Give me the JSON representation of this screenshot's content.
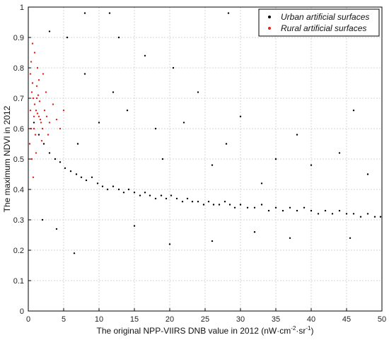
{
  "chart_data": {
    "type": "scatter",
    "xlabel": "The original NPP-VIIRS DNB value in 2012 (nW·cm",
    "xlabel_sup1": "-2",
    "xlabel_mid": "·sr",
    "xlabel_sup2": "-1",
    "xlabel_end": ")",
    "ylabel": "The maximum NDVI in 2012",
    "xlim": [
      0,
      50
    ],
    "ylim": [
      0,
      1
    ],
    "xticks": [
      "0",
      "5",
      "10",
      "15",
      "20",
      "25",
      "30",
      "35",
      "40",
      "45",
      "50"
    ],
    "yticks": [
      "0",
      "0.1",
      "0.2",
      "0.3",
      "0.4",
      "0.5",
      "0.6",
      "0.7",
      "0.8",
      "0.9",
      "1"
    ],
    "grid": true,
    "legend_position": "top-right",
    "series": [
      {
        "name": "Urban artificial surfaces",
        "color": "#000000",
        "points": [
          [
            0.8,
            0.62
          ],
          [
            1.5,
            0.58
          ],
          [
            2.2,
            0.55
          ],
          [
            3.0,
            0.52
          ],
          [
            3.8,
            0.5
          ],
          [
            4.5,
            0.49
          ],
          [
            5.2,
            0.47
          ],
          [
            6.0,
            0.46
          ],
          [
            6.8,
            0.45
          ],
          [
            7.5,
            0.44
          ],
          [
            8.2,
            0.43
          ],
          [
            9.0,
            0.44
          ],
          [
            9.8,
            0.42
          ],
          [
            10.5,
            0.41
          ],
          [
            11.2,
            0.4
          ],
          [
            12.0,
            0.41
          ],
          [
            12.8,
            0.4
          ],
          [
            13.5,
            0.39
          ],
          [
            14.2,
            0.4
          ],
          [
            15.0,
            0.39
          ],
          [
            15.8,
            0.38
          ],
          [
            16.5,
            0.39
          ],
          [
            17.2,
            0.38
          ],
          [
            18.0,
            0.37
          ],
          [
            18.8,
            0.38
          ],
          [
            19.5,
            0.37
          ],
          [
            20.2,
            0.38
          ],
          [
            21.0,
            0.37
          ],
          [
            21.8,
            0.36
          ],
          [
            22.5,
            0.37
          ],
          [
            23.2,
            0.36
          ],
          [
            24.0,
            0.36
          ],
          [
            24.8,
            0.35
          ],
          [
            25.5,
            0.36
          ],
          [
            26.2,
            0.35
          ],
          [
            27.0,
            0.35
          ],
          [
            27.8,
            0.36
          ],
          [
            28.5,
            0.35
          ],
          [
            29.2,
            0.34
          ],
          [
            30.0,
            0.35
          ],
          [
            31.0,
            0.34
          ],
          [
            32.0,
            0.34
          ],
          [
            33.0,
            0.35
          ],
          [
            34.0,
            0.33
          ],
          [
            35.0,
            0.34
          ],
          [
            36.0,
            0.33
          ],
          [
            37.0,
            0.34
          ],
          [
            38.0,
            0.33
          ],
          [
            39.0,
            0.34
          ],
          [
            40.0,
            0.33
          ],
          [
            41.0,
            0.32
          ],
          [
            42.0,
            0.33
          ],
          [
            43.0,
            0.32
          ],
          [
            44.0,
            0.33
          ],
          [
            45.0,
            0.32
          ],
          [
            46.0,
            0.32
          ],
          [
            47.0,
            0.31
          ],
          [
            48.0,
            0.32
          ],
          [
            49.0,
            0.31
          ],
          [
            49.8,
            0.31
          ],
          [
            6.5,
            0.19
          ],
          [
            8.0,
            0.98
          ],
          [
            11.5,
            0.98
          ],
          [
            28.3,
            0.98
          ],
          [
            3.0,
            0.92
          ],
          [
            12.8,
            0.9
          ],
          [
            5.5,
            0.9
          ],
          [
            2.0,
            0.3
          ],
          [
            4.0,
            0.27
          ],
          [
            26.0,
            0.23
          ],
          [
            32.0,
            0.26
          ],
          [
            37.0,
            0.24
          ],
          [
            45.5,
            0.24
          ],
          [
            20.0,
            0.22
          ],
          [
            15.0,
            0.28
          ],
          [
            10.0,
            0.62
          ],
          [
            14.0,
            0.66
          ],
          [
            18.0,
            0.6
          ],
          [
            22.0,
            0.62
          ],
          [
            28.0,
            0.55
          ],
          [
            35.0,
            0.5
          ],
          [
            40.0,
            0.48
          ],
          [
            44.0,
            0.52
          ],
          [
            46.0,
            0.66
          ],
          [
            30.0,
            0.64
          ],
          [
            24.0,
            0.72
          ],
          [
            16.5,
            0.84
          ],
          [
            20.5,
            0.8
          ],
          [
            8.0,
            0.78
          ],
          [
            12.0,
            0.72
          ],
          [
            48.0,
            0.45
          ],
          [
            38.0,
            0.58
          ],
          [
            33.0,
            0.42
          ],
          [
            26.0,
            0.48
          ],
          [
            19.0,
            0.5
          ],
          [
            7.0,
            0.55
          ]
        ]
      },
      {
        "name": "Rural artificial surfaces",
        "color": "#e0231c",
        "points": [
          [
            0.3,
            0.78
          ],
          [
            0.5,
            0.72
          ],
          [
            0.7,
            0.7
          ],
          [
            0.9,
            0.68
          ],
          [
            1.1,
            0.66
          ],
          [
            1.3,
            0.65
          ],
          [
            1.5,
            0.64
          ],
          [
            1.7,
            0.63
          ],
          [
            0.4,
            0.82
          ],
          [
            0.6,
            0.75
          ],
          [
            0.8,
            0.6
          ],
          [
            1.0,
            0.58
          ],
          [
            1.2,
            0.74
          ],
          [
            1.4,
            0.71
          ],
          [
            1.6,
            0.69
          ],
          [
            1.8,
            0.62
          ],
          [
            2.0,
            0.6
          ],
          [
            2.3,
            0.66
          ],
          [
            2.6,
            0.64
          ],
          [
            3.0,
            0.62
          ],
          [
            0.2,
            0.55
          ],
          [
            0.5,
            0.5
          ],
          [
            0.9,
            0.85
          ],
          [
            1.3,
            0.8
          ],
          [
            2.5,
            0.72
          ],
          [
            3.5,
            0.68
          ],
          [
            4.0,
            0.63
          ],
          [
            0.7,
            0.44
          ],
          [
            1.1,
            0.52
          ],
          [
            0.3,
            0.66
          ],
          [
            1.9,
            0.56
          ],
          [
            2.8,
            0.58
          ],
          [
            4.5,
            0.6
          ],
          [
            5.0,
            0.66
          ],
          [
            0.6,
            0.88
          ],
          [
            1.5,
            0.76
          ],
          [
            2.1,
            0.78
          ],
          [
            0.4,
            0.6
          ],
          [
            0.8,
            0.64
          ],
          [
            1.2,
            0.7
          ]
        ]
      }
    ]
  }
}
